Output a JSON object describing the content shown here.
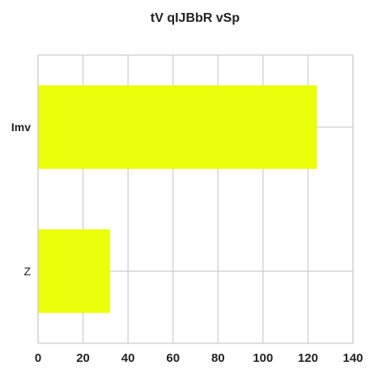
{
  "chart_data": {
    "type": "bar",
    "orientation": "horizontal",
    "title": "tV qIJBbR vSp",
    "categories": [
      "Imv",
      "Z"
    ],
    "values": [
      124,
      32
    ],
    "xlabel": "",
    "ylabel": "",
    "xlim": [
      0,
      140
    ],
    "xticks": [
      0,
      20,
      40,
      60,
      80,
      100,
      120,
      140
    ],
    "grid": true,
    "legend": "none",
    "colors": {
      "bar": "#eaff0a",
      "grid": "#cccccc",
      "frame": "#cccccc",
      "text": "#222222"
    }
  }
}
